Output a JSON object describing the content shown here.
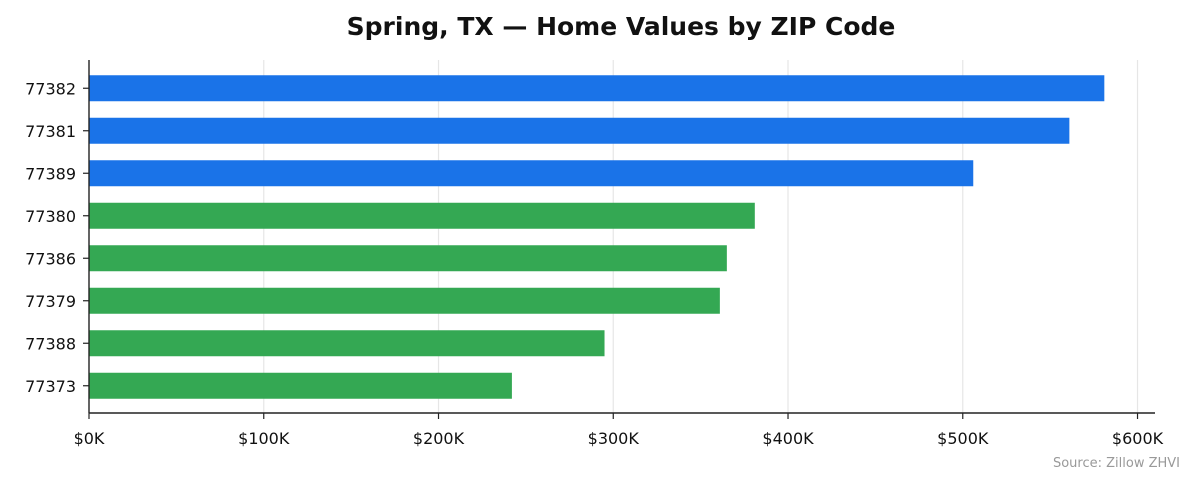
{
  "chart_data": {
    "type": "bar",
    "orientation": "horizontal",
    "title": "Spring, TX — Home Values by ZIP Code",
    "categories": [
      "77382",
      "77381",
      "77389",
      "77380",
      "77386",
      "77379",
      "77388",
      "77373"
    ],
    "values": [
      581000,
      561000,
      506000,
      381000,
      365000,
      361000,
      295000,
      242000
    ],
    "bar_colors": [
      "#1a73e8",
      "#1a73e8",
      "#1a73e8",
      "#34a853",
      "#34a853",
      "#34a853",
      "#34a853",
      "#34a853"
    ],
    "xlim": [
      0,
      610000
    ],
    "x_ticks": [
      0,
      100000,
      200000,
      300000,
      400000,
      500000,
      600000
    ],
    "x_tick_labels": [
      "$0K",
      "$100K",
      "$200K",
      "$300K",
      "$400K",
      "$500K",
      "$600K"
    ],
    "xlabel": "",
    "ylabel": "",
    "grid": "vertical",
    "source": "Source: Zillow ZHVI"
  }
}
